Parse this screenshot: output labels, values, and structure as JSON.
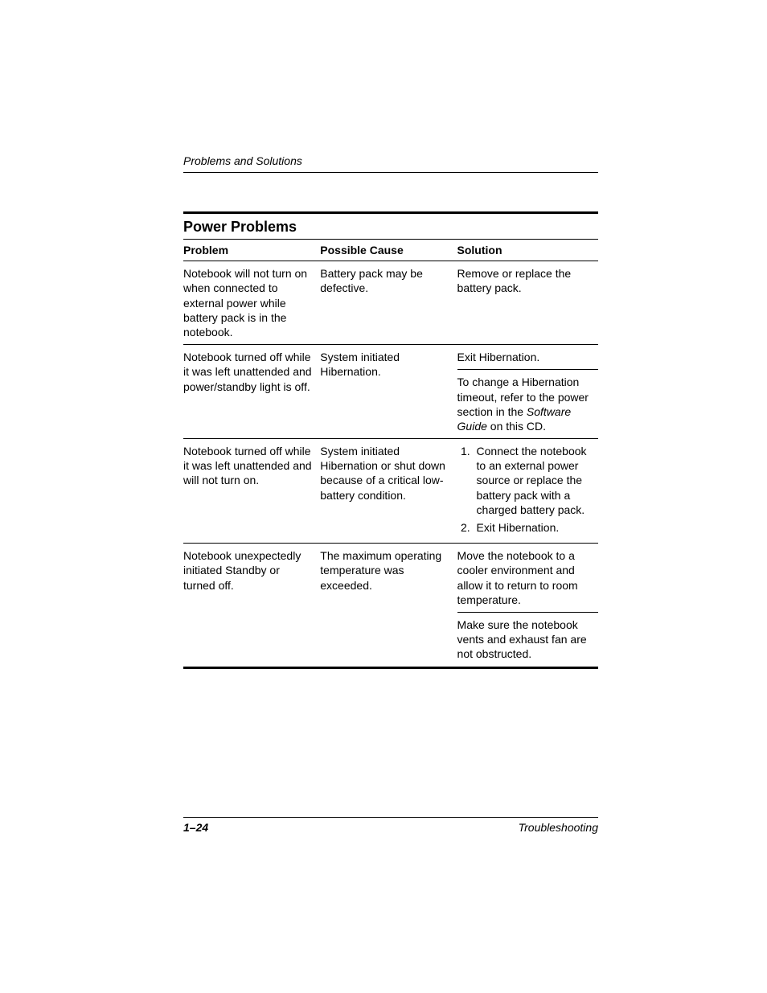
{
  "header": {
    "section": "Problems and Solutions"
  },
  "table": {
    "title": "Power Problems",
    "columns": [
      "Problem",
      "Possible Cause",
      "Solution"
    ],
    "rows": {
      "r1": {
        "problem": "Notebook will not turn on when connected to external power while battery pack is in the notebook.",
        "cause": "Battery pack may be defective.",
        "solution": "Remove or replace the battery pack."
      },
      "r2": {
        "problem": "Notebook turned off while it was left unattended and power/standby light is off.",
        "cause": "System initiated Hibernation.",
        "solution_a": "Exit Hibernation.",
        "solution_b_pre": "To change a Hibernation timeout, refer to the power section in the ",
        "solution_b_ital": "Software Guide",
        "solution_b_post": " on this CD."
      },
      "r3": {
        "problem": "Notebook turned off while it was left unattended and will not turn on.",
        "cause": "System initiated Hibernation or shut down because of a critical low-battery condition.",
        "steps": {
          "s1": "Connect the notebook to an external power source or replace the battery pack with a charged battery pack.",
          "s2": "Exit Hibernation."
        }
      },
      "r4": {
        "problem": "Notebook unexpectedly initiated Standby or turned off.",
        "cause": "The maximum operating temperature was exceeded.",
        "solution_a": "Move the notebook to a cooler environment and allow it to return to room temperature.",
        "solution_b": "Make sure the notebook vents and exhaust fan are not obstructed."
      }
    }
  },
  "footer": {
    "page": "1–24",
    "label": "Troubleshooting"
  }
}
